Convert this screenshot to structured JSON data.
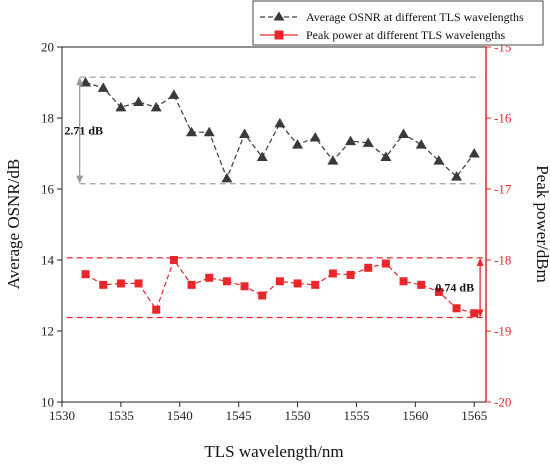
{
  "chart_data": {
    "type": "line",
    "xlabel": "TLS wavelength/nm",
    "ylabel_left": "Average OSNR/dB",
    "ylabel_right": "Peak power/dBm",
    "xlim": [
      1530,
      1566
    ],
    "ylim_left": [
      10,
      20
    ],
    "ylim_right": [
      -20,
      -15
    ],
    "x_ticks": [
      "1530",
      "1535",
      "1540",
      "1545",
      "1550",
      "1555",
      "1560",
      "1565"
    ],
    "y_left_ticks": [
      "10",
      "12",
      "14",
      "16",
      "18",
      "20"
    ],
    "y_right_ticks": [
      "-20",
      "-19",
      "-18",
      "-17",
      "-16",
      "-15"
    ],
    "legend_position": "top-right",
    "series": [
      {
        "name": "Average OSNR at different TLS wavelengths",
        "axis": "left",
        "color": "#3a3a3a",
        "marker": "triangle",
        "line_style": "dashed",
        "x": [
          1532,
          1533.5,
          1535,
          1536.5,
          1538,
          1539.5,
          1541,
          1542.5,
          1544,
          1545.5,
          1547,
          1548.5,
          1550,
          1551.5,
          1553,
          1554.5,
          1556,
          1557.5,
          1559,
          1560.5,
          1562,
          1563.5,
          1565
        ],
        "values": [
          19.0,
          18.85,
          18.3,
          18.45,
          18.3,
          18.65,
          17.6,
          17.6,
          16.3,
          17.55,
          16.9,
          17.85,
          17.25,
          17.45,
          16.8,
          17.35,
          17.3,
          16.9,
          17.55,
          17.25,
          16.8,
          16.35,
          17.0
        ]
      },
      {
        "name": "Peak power at different TLS wavelengths",
        "axis": "right",
        "color": "#e8262b",
        "marker": "square",
        "line_style": "dashed",
        "x": [
          1532,
          1533.5,
          1535,
          1536.5,
          1538,
          1539.5,
          1541,
          1542.5,
          1544,
          1545.5,
          1547,
          1548.5,
          1550,
          1551.5,
          1553,
          1554.5,
          1556,
          1557.5,
          1559,
          1560.5,
          1562,
          1563.5,
          1565
        ],
        "values": [
          -18.2,
          -18.35,
          -18.33,
          -18.33,
          -18.7,
          -18.0,
          -18.35,
          -18.25,
          -18.3,
          -18.37,
          -18.5,
          -18.3,
          -18.33,
          -18.35,
          -18.19,
          -18.21,
          -18.11,
          -18.05,
          -18.3,
          -18.35,
          -18.45,
          -18.68,
          -18.75
        ]
      }
    ],
    "reference_lines": {
      "osnr_upper": 19.15,
      "osnr_lower": 16.15,
      "power_upper": -17.97,
      "power_lower": -18.81
    },
    "annotations": [
      {
        "text": "2.71 dB",
        "color": "#9a9a9a"
      },
      {
        "text": "0.74 dB",
        "color": "#e8262b"
      }
    ]
  }
}
